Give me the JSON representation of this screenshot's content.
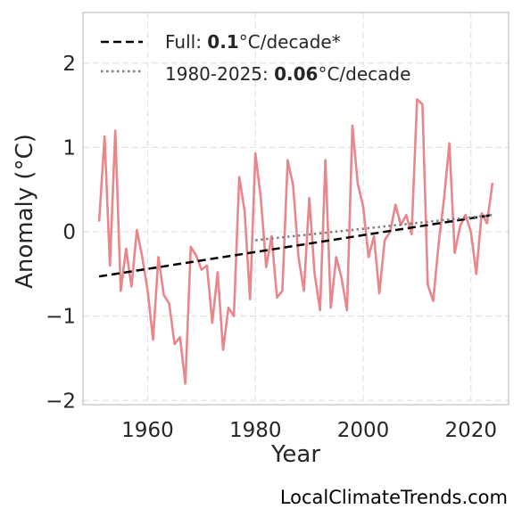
{
  "chart_data": {
    "type": "line",
    "title": "",
    "xlabel": "Year",
    "ylabel": "Anomaly (°C)",
    "xlim": [
      1948,
      2027
    ],
    "ylim": [
      -2.05,
      2.6
    ],
    "xticks": [
      1960,
      1980,
      2000,
      2020
    ],
    "yticks": [
      -2,
      -1,
      0,
      1,
      2
    ],
    "ytick_labels": [
      "−2",
      "−1",
      "0",
      "1",
      "2"
    ],
    "grid": true,
    "legend_position": "top-left",
    "colors": {
      "series": "#e8868b",
      "full_trend": "#000000",
      "recent_trend": "#808080",
      "grid": "#e3e3e3",
      "frame": "#cccccc"
    },
    "series": [
      {
        "x": [
          1951,
          1952,
          1953,
          1954,
          1955,
          1956,
          1957,
          1958,
          1959,
          1960,
          1961,
          1962,
          1963,
          1964,
          1965,
          1966,
          1967,
          1968,
          1969,
          1970,
          1971,
          1972,
          1973,
          1974,
          1975,
          1976,
          1977,
          1978,
          1979,
          1980,
          1981,
          1982,
          1983,
          1984,
          1985,
          1986,
          1987,
          1988,
          1989,
          1990,
          1991,
          1992,
          1993,
          1994,
          1995,
          1996,
          1997,
          1998,
          1999,
          2000,
          2001,
          2002,
          2003,
          2004,
          2005,
          2006,
          2007,
          2008,
          2009,
          2010,
          2011,
          2012,
          2013,
          2014,
          2015,
          2016,
          2017,
          2018,
          2019,
          2020,
          2021,
          2022,
          2023,
          2024
        ],
        "values": [
          0.12,
          1.13,
          -0.4,
          1.2,
          -0.7,
          -0.2,
          -0.65,
          0.02,
          -0.3,
          -0.7,
          -1.28,
          -0.3,
          -0.75,
          -0.85,
          -1.33,
          -1.25,
          -1.8,
          -0.18,
          -0.28,
          -0.45,
          -0.4,
          -1.08,
          -0.48,
          -1.4,
          -0.9,
          -1.0,
          0.65,
          0.25,
          -0.8,
          0.93,
          0.4,
          -0.42,
          -0.05,
          -0.78,
          -0.7,
          0.85,
          0.55,
          -0.3,
          -0.7,
          0.4,
          -0.5,
          -0.93,
          0.85,
          -0.9,
          -0.3,
          -0.55,
          -0.93,
          1.26,
          0.57,
          0.3,
          -0.3,
          -0.05,
          -0.73,
          -0.1,
          0.0,
          0.32,
          0.08,
          0.2,
          -0.03,
          1.57,
          1.51,
          -0.63,
          -0.82,
          -0.15,
          0.38,
          1.05,
          -0.25,
          0.07,
          0.2,
          0.0,
          -0.5,
          0.22,
          0.1,
          0.58
        ]
      }
    ],
    "trends": [
      {
        "legend_prefix": "Full: ",
        "legend_value": "0.1",
        "legend_suffix": "°C/decade*",
        "style": "dashed",
        "x": [
          1951,
          2024
        ],
        "y": [
          -0.53,
          0.2
        ]
      },
      {
        "legend_prefix": "1980-2025: ",
        "legend_value": "0.06",
        "legend_suffix": "°C/decade",
        "style": "dotted",
        "x": [
          1980,
          2024
        ],
        "y": [
          -0.1,
          0.2
        ]
      }
    ]
  },
  "credit": "LocalClimateTrends.com"
}
